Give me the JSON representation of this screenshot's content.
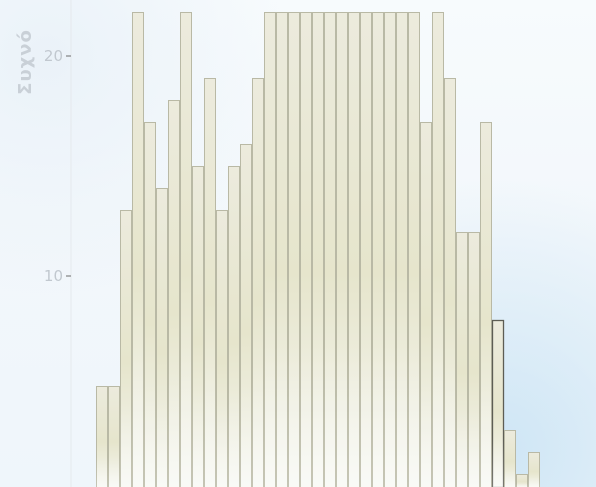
{
  "chart_data": {
    "type": "bar",
    "ylabel": "Συχνό",
    "yticks": [
      10,
      20
    ],
    "ylim": [
      0.6,
      22
    ],
    "grid": false,
    "values": [
      5,
      5,
      13,
      22,
      17,
      14,
      18,
      22,
      15,
      19,
      13,
      15,
      16,
      19,
      22,
      22,
      22,
      22,
      22,
      22,
      22,
      22,
      22,
      22,
      22,
      22,
      22,
      17,
      22,
      19,
      12,
      12,
      17,
      8,
      3,
      1,
      2
    ],
    "bar_fill_top": "#e8e8d9",
    "bar_fill_bottom": "#f5f7f1",
    "bar_stroke": "#b9b9a5",
    "highlight_bar_stroke": "#5d5d54",
    "highlight_bar_index": 33
  }
}
